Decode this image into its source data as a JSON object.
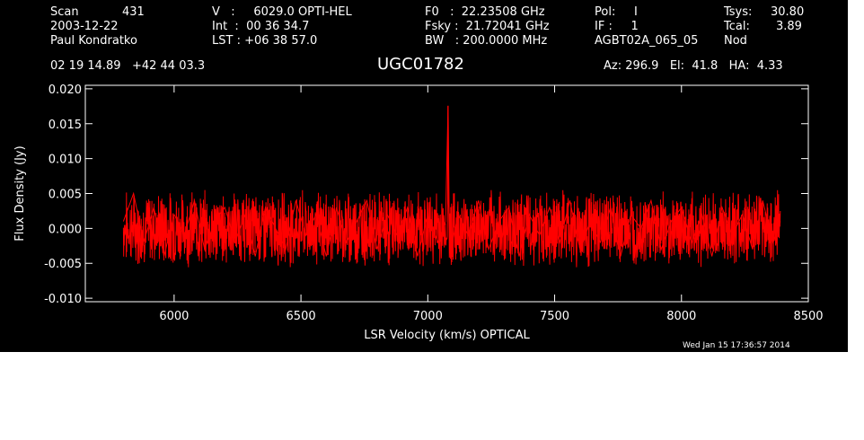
{
  "header": {
    "scan_label": "Scan",
    "scan_number": "431",
    "date": "2003-12-22",
    "observer": "Paul Kondratko",
    "v_line": "V   :     6029.0 OPTI-HEL",
    "int_line": "Int  :  00 36 34.7",
    "lst_line": "LST : +06 38 57.0",
    "f0_line": "F0   :  22.23508 GHz",
    "fsky_line": "Fsky :  21.72041 GHz",
    "bw_line": "BW   : 200.0000 MHz",
    "pol_line": "Pol:     I",
    "if_line": "IF :     1",
    "project": "AGBT02A_065_05",
    "tsys_label": "Tsys:",
    "tsys_value": "30.80",
    "tcal_label": "Tcal:",
    "tcal_value": "3.89",
    "mode": "Nod",
    "coords": "02 19 14.89   +42 44 03.3",
    "source": "UGC01782",
    "az_line": "Az: 296.9   El:  41.8   HA:  4.33",
    "timestamp": "Wed Jan 15 17:36:57 2014"
  },
  "colors": {
    "background": "#000000",
    "axes": "#ffffff",
    "trace": "#ff0000"
  },
  "chart_data": {
    "type": "line",
    "title": "UGC01782",
    "xlabel": "LSR Velocity (km/s) OPTICAL",
    "ylabel": "Flux Density (Jy)",
    "xlim": [
      5650,
      8500
    ],
    "ylim": [
      -0.0105,
      0.0205
    ],
    "xticks": [
      6000,
      6500,
      7000,
      7500,
      8000,
      8500
    ],
    "xtick_labels": [
      "6000",
      "6500",
      "7000",
      "7500",
      "8000",
      "8500"
    ],
    "yticks": [
      -0.01,
      -0.005,
      0.0,
      0.005,
      0.01,
      0.015,
      0.02
    ],
    "ytick_labels": [
      "-0.010",
      "-0.005",
      "0.000",
      "0.005",
      "0.010",
      "0.015",
      "0.020"
    ],
    "grid": false,
    "series": [
      {
        "x": [
          5800,
          5840,
          5880,
          5920,
          5960,
          6000,
          6040,
          6080,
          6120,
          6160,
          6200,
          6240,
          6280,
          6320,
          6360,
          6400,
          6440,
          6480,
          6520,
          6560,
          6600,
          6640,
          6680,
          6720,
          6760,
          6800,
          6840,
          6880,
          6920,
          6960,
          7000,
          7040,
          7070,
          7080,
          7085,
          7090,
          7120,
          7160,
          7200,
          7240,
          7280,
          7320,
          7360,
          7400,
          7440,
          7480,
          7520,
          7560,
          7600,
          7640,
          7680,
          7720,
          7760,
          7800,
          7840,
          7880,
          7920,
          7960,
          8000,
          8040,
          8080,
          8120,
          8160,
          8200,
          8240,
          8280,
          8320,
          8360,
          8390
        ],
        "y": [
          0.001,
          0.005,
          -0.002,
          0.003,
          -0.004,
          0.002,
          -0.001,
          0.004,
          -0.003,
          0.001,
          0.003,
          -0.002,
          0.002,
          -0.004,
          0.003,
          0.0,
          -0.003,
          0.004,
          -0.001,
          0.002,
          -0.004,
          0.003,
          -0.002,
          0.001,
          0.004,
          -0.003,
          0.002,
          -0.001,
          0.003,
          -0.004,
          0.002,
          -0.002,
          0.001,
          0.0175,
          0.0,
          -0.003,
          0.002,
          -0.001,
          0.004,
          -0.003,
          0.001,
          0.003,
          -0.004,
          0.002,
          -0.001,
          0.003,
          -0.002,
          0.004,
          -0.003,
          0.001,
          -0.002,
          0.003,
          -0.004,
          0.002,
          0.0,
          0.004,
          -0.003,
          0.001,
          0.003,
          -0.002,
          0.002,
          -0.004,
          0.003,
          -0.001,
          0.002,
          -0.003,
          0.004,
          -0.002,
          0.001
        ]
      }
    ]
  }
}
